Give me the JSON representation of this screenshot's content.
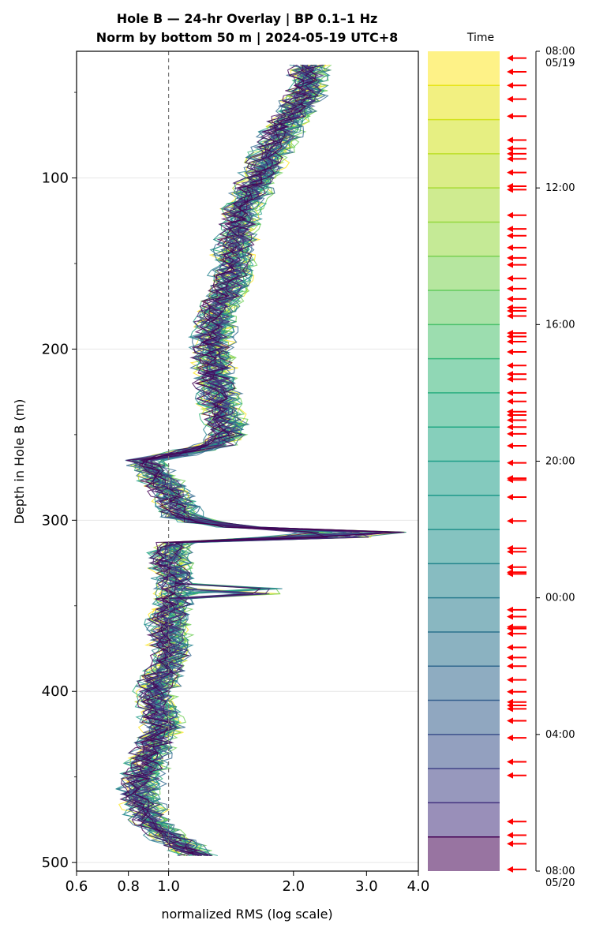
{
  "chart_data": {
    "type": "line",
    "title_line1": "Hole B — 24-hr Overlay  |  BP 0.1–1 Hz",
    "title_line2": "Norm by bottom 50 m  |  2024-05-19 UTC+8",
    "xlabel": "normalized RMS  (log scale)",
    "ylabel": "Depth in Hole B (m)",
    "x_scale": "log",
    "xlim": [
      0.6,
      4.0
    ],
    "ylim": [
      505,
      26
    ],
    "x_ticks": [
      0.6,
      0.8,
      1.0,
      2.0,
      3.0,
      4.0
    ],
    "x_tick_labels": [
      "0.6",
      "0.8",
      "1.0",
      "2.0",
      "3.0",
      "4.0"
    ],
    "y_ticks": [
      100,
      200,
      300,
      400,
      500
    ],
    "y_tick_labels": [
      "100",
      "200",
      "300",
      "400",
      "500"
    ],
    "y_minor_ticks": [
      50,
      150,
      250,
      350,
      450
    ],
    "reference_line_x": 1.0,
    "grid": "horizontal",
    "colormap": "viridis",
    "depth_start": 34,
    "depth_end": 497,
    "depth_step": 3,
    "profile_knots_depth": [
      34,
      50,
      70,
      100,
      120,
      140,
      160,
      180,
      200,
      220,
      245,
      255,
      265,
      275,
      290,
      300,
      305,
      308,
      312,
      320,
      340,
      360,
      380,
      400,
      420,
      440,
      460,
      475,
      485,
      497
    ],
    "profile_knots_rms": [
      2.2,
      2.15,
      1.9,
      1.65,
      1.5,
      1.45,
      1.42,
      1.3,
      1.28,
      1.3,
      1.38,
      1.35,
      0.88,
      0.95,
      1.05,
      1.1,
      1.6,
      2.2,
      1.05,
      1.0,
      1.05,
      1.0,
      1.02,
      0.93,
      0.97,
      0.9,
      0.85,
      0.9,
      1.0,
      1.2
    ],
    "series_colors": [
      "#fde725",
      "#b5de2b",
      "#6ece58",
      "#35b779",
      "#1f9e89",
      "#26828e",
      "#31688e",
      "#3e4989",
      "#482878",
      "#440154"
    ],
    "n_series": 48,
    "colorbar": {
      "label": "Time",
      "tick_labels": [
        "08:00\n05/19",
        "12:00",
        "16:00",
        "20:00",
        "00:00",
        "04:00",
        "08:00\n05/20"
      ],
      "tick_hours": [
        0,
        4,
        8,
        12,
        16,
        20,
        24
      ],
      "n_bands": 24,
      "band_colors": [
        "#fde725",
        "#e7e419",
        "#d2e21b",
        "#bddf26",
        "#a8db34",
        "#95d840",
        "#7ad151",
        "#62cb5f",
        "#4ac16d",
        "#35b779",
        "#2aae80",
        "#22a884",
        "#1f9e89",
        "#1e9a8a",
        "#21918c",
        "#25858e",
        "#287c8e",
        "#2c728e",
        "#31688e",
        "#355f8d",
        "#3b528b",
        "#414487",
        "#46337f",
        "#440154"
      ]
    },
    "arrow_times_hours": [
      0.2,
      0.6,
      1.0,
      1.4,
      1.9,
      2.6,
      2.85,
      3.0,
      3.15,
      3.55,
      3.95,
      4.05,
      4.8,
      5.2,
      5.4,
      5.75,
      6.05,
      6.25,
      6.65,
      6.95,
      7.25,
      7.5,
      7.6,
      7.75,
      8.25,
      8.35,
      8.5,
      8.8,
      9.2,
      9.45,
      9.6,
      10.0,
      10.25,
      10.55,
      10.65,
      10.8,
      11.0,
      11.2,
      11.55,
      12.05,
      12.5,
      12.55,
      13.05,
      13.75,
      14.55,
      14.65,
      15.1,
      15.25,
      15.3,
      16.35,
      16.55,
      16.85,
      16.9,
      17.05,
      17.45,
      17.75,
      18.0,
      18.4,
      18.75,
      19.05,
      19.15,
      19.25,
      19.6,
      20.1,
      20.8,
      21.2,
      22.55,
      22.95,
      23.2,
      23.95
    ]
  }
}
